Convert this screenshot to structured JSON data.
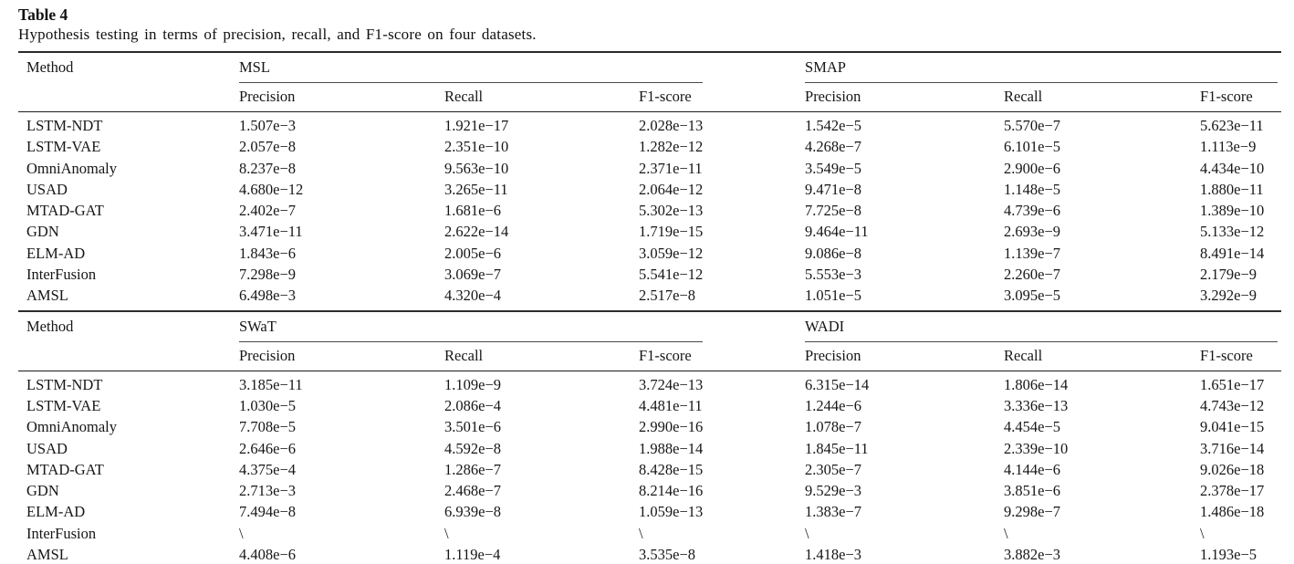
{
  "caption": {
    "label": "Table 4",
    "text": "Hypothesis testing in terms of precision, recall, and F1-score on four datasets."
  },
  "chart_data": {
    "type": "table",
    "title": "Hypothesis testing in terms of precision, recall, and F1-score on four datasets."
  },
  "sections": [
    {
      "method_label": "Method",
      "groups": [
        {
          "name": "MSL",
          "columns": [
            "Precision",
            "Recall",
            "F1-score"
          ]
        },
        {
          "name": "SMAP",
          "columns": [
            "Precision",
            "Recall",
            "F1-score"
          ]
        }
      ],
      "rows": [
        {
          "method": "LSTM-NDT",
          "values": [
            "1.507e−3",
            "1.921e−17",
            "2.028e−13",
            "1.542e−5",
            "5.570e−7",
            "5.623e−11"
          ]
        },
        {
          "method": "LSTM-VAE",
          "values": [
            "2.057e−8",
            "2.351e−10",
            "1.282e−12",
            "4.268e−7",
            "6.101e−5",
            "1.113e−9"
          ]
        },
        {
          "method": "OmniAnomaly",
          "values": [
            "8.237e−8",
            "9.563e−10",
            "2.371e−11",
            "3.549e−5",
            "2.900e−6",
            "4.434e−10"
          ]
        },
        {
          "method": "USAD",
          "values": [
            "4.680e−12",
            "3.265e−11",
            "2.064e−12",
            "9.471e−8",
            "1.148e−5",
            "1.880e−11"
          ]
        },
        {
          "method": "MTAD-GAT",
          "values": [
            "2.402e−7",
            "1.681e−6",
            "5.302e−13",
            "7.725e−8",
            "4.739e−6",
            "1.389e−10"
          ]
        },
        {
          "method": "GDN",
          "values": [
            "3.471e−11",
            "2.622e−14",
            "1.719e−15",
            "9.464e−11",
            "2.693e−9",
            "5.133e−12"
          ]
        },
        {
          "method": "ELM-AD",
          "values": [
            "1.843e−6",
            "2.005e−6",
            "3.059e−12",
            "9.086e−8",
            "1.139e−7",
            "8.491e−14"
          ]
        },
        {
          "method": "InterFusion",
          "values": [
            "7.298e−9",
            "3.069e−7",
            "5.541e−12",
            "5.553e−3",
            "2.260e−7",
            "2.179e−9"
          ]
        },
        {
          "method": "AMSL",
          "values": [
            "6.498e−3",
            "4.320e−4",
            "2.517e−8",
            "1.051e−5",
            "3.095e−5",
            "3.292e−9"
          ]
        }
      ]
    },
    {
      "method_label": "Method",
      "groups": [
        {
          "name": "SWaT",
          "columns": [
            "Precision",
            "Recall",
            "F1-score"
          ]
        },
        {
          "name": "WADI",
          "columns": [
            "Precision",
            "Recall",
            "F1-score"
          ]
        }
      ],
      "rows": [
        {
          "method": "LSTM-NDT",
          "values": [
            "3.185e−11",
            "1.109e−9",
            "3.724e−13",
            "6.315e−14",
            "1.806e−14",
            "1.651e−17"
          ]
        },
        {
          "method": "LSTM-VAE",
          "values": [
            "1.030e−5",
            "2.086e−4",
            "4.481e−11",
            "1.244e−6",
            "3.336e−13",
            "4.743e−12"
          ]
        },
        {
          "method": "OmniAnomaly",
          "values": [
            "7.708e−5",
            "3.501e−6",
            "2.990e−16",
            "1.078e−7",
            "4.454e−5",
            "9.041e−15"
          ]
        },
        {
          "method": "USAD",
          "values": [
            "2.646e−6",
            "4.592e−8",
            "1.988e−14",
            "1.845e−11",
            "2.339e−10",
            "3.716e−14"
          ]
        },
        {
          "method": "MTAD-GAT",
          "values": [
            "4.375e−4",
            "1.286e−7",
            "8.428e−15",
            "2.305e−7",
            "4.144e−6",
            "9.026e−18"
          ]
        },
        {
          "method": "GDN",
          "values": [
            "2.713e−3",
            "2.468e−7",
            "8.214e−16",
            "9.529e−3",
            "3.851e−6",
            "2.378e−17"
          ]
        },
        {
          "method": "ELM-AD",
          "values": [
            "7.494e−8",
            "6.939e−8",
            "1.059e−13",
            "1.383e−7",
            "9.298e−7",
            "1.486e−18"
          ]
        },
        {
          "method": "InterFusion",
          "values": [
            "\\",
            "\\",
            "\\",
            "\\",
            "\\",
            "\\"
          ]
        },
        {
          "method": "AMSL",
          "values": [
            "4.408e−6",
            "1.119e−4",
            "3.535e−8",
            "1.418e−3",
            "3.882e−3",
            "1.193e−5"
          ]
        }
      ]
    }
  ]
}
